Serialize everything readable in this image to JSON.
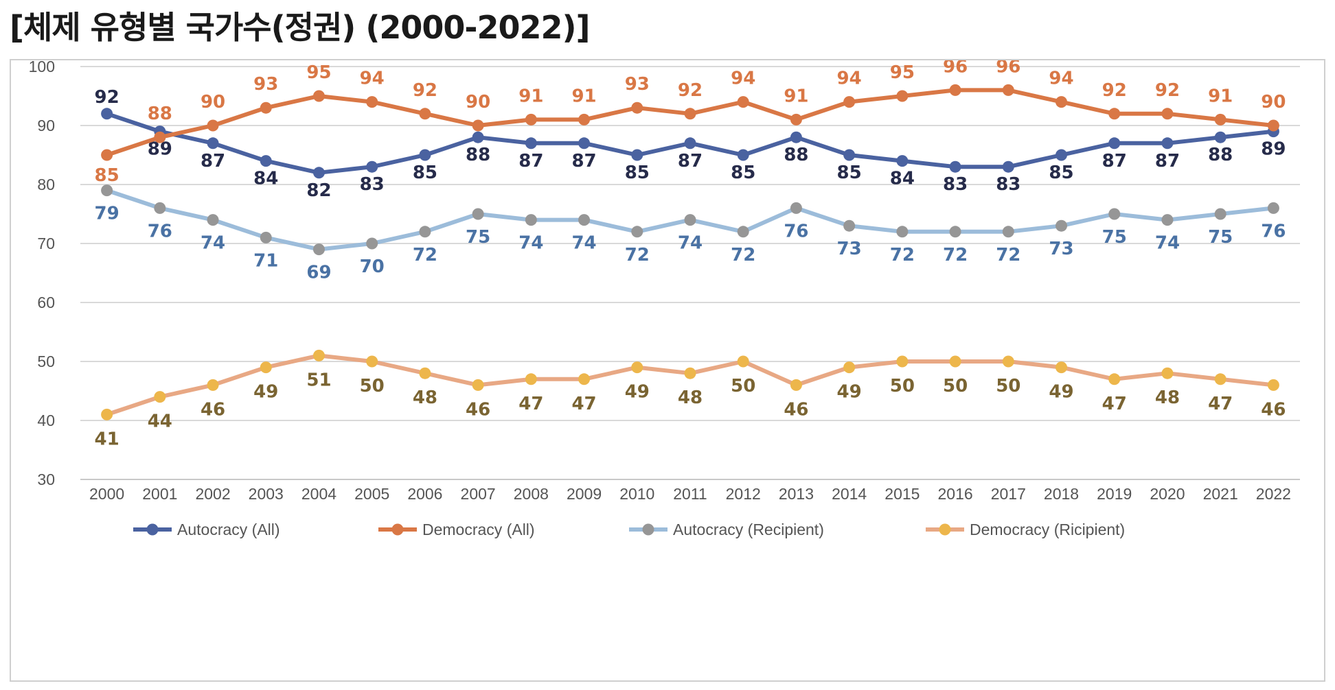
{
  "title": "[체제 유형별 국가수(정권) (2000-2022)]",
  "chart_data": {
    "type": "line",
    "title": "[체제 유형별 국가수(정권) (2000-2022)]",
    "xlabel": "",
    "ylabel": "",
    "ylim": [
      30,
      100
    ],
    "yticks": [
      "30",
      "40",
      "50",
      "60",
      "70",
      "80",
      "90",
      "100"
    ],
    "grid": true,
    "legend_position": "bottom",
    "categories": [
      "2000",
      "2001",
      "2002",
      "2003",
      "2004",
      "2005",
      "2006",
      "2007",
      "2008",
      "2009",
      "2010",
      "2011",
      "2012",
      "2013",
      "2014",
      "2015",
      "2016",
      "2017",
      "2018",
      "2019",
      "2020",
      "2021",
      "2022"
    ],
    "series": [
      {
        "name": "Autocracy (All)",
        "line_color": "#4A62A0",
        "label_color": "#262B4A",
        "values": [
          92,
          89,
          87,
          84,
          82,
          83,
          85,
          88,
          87,
          87,
          85,
          87,
          85,
          88,
          85,
          84,
          83,
          83,
          85,
          87,
          87,
          88,
          89
        ]
      },
      {
        "name": "Democracy (All)",
        "line_color": "#D97745",
        "label_color": "#D97745",
        "values": [
          85,
          88,
          90,
          93,
          95,
          94,
          92,
          90,
          91,
          91,
          93,
          92,
          94,
          91,
          94,
          95,
          96,
          96,
          94,
          92,
          92,
          91,
          90
        ]
      },
      {
        "name": "Autocracy (Recipient)",
        "line_color": "#9CBCDA",
        "marker_color": "#969696",
        "label_color": "#4A72A4",
        "values": [
          79,
          76,
          74,
          71,
          69,
          70,
          72,
          75,
          74,
          74,
          72,
          74,
          72,
          76,
          73,
          72,
          72,
          72,
          73,
          75,
          74,
          75,
          76
        ]
      },
      {
        "name": "Democracy (Ricipient)",
        "line_color": "#E8A884",
        "marker_color": "#EDB64B",
        "label_color": "#7A6432",
        "values": [
          41,
          44,
          46,
          49,
          51,
          50,
          48,
          46,
          47,
          47,
          49,
          48,
          50,
          46,
          49,
          50,
          50,
          50,
          49,
          47,
          48,
          47,
          46
        ]
      }
    ]
  }
}
